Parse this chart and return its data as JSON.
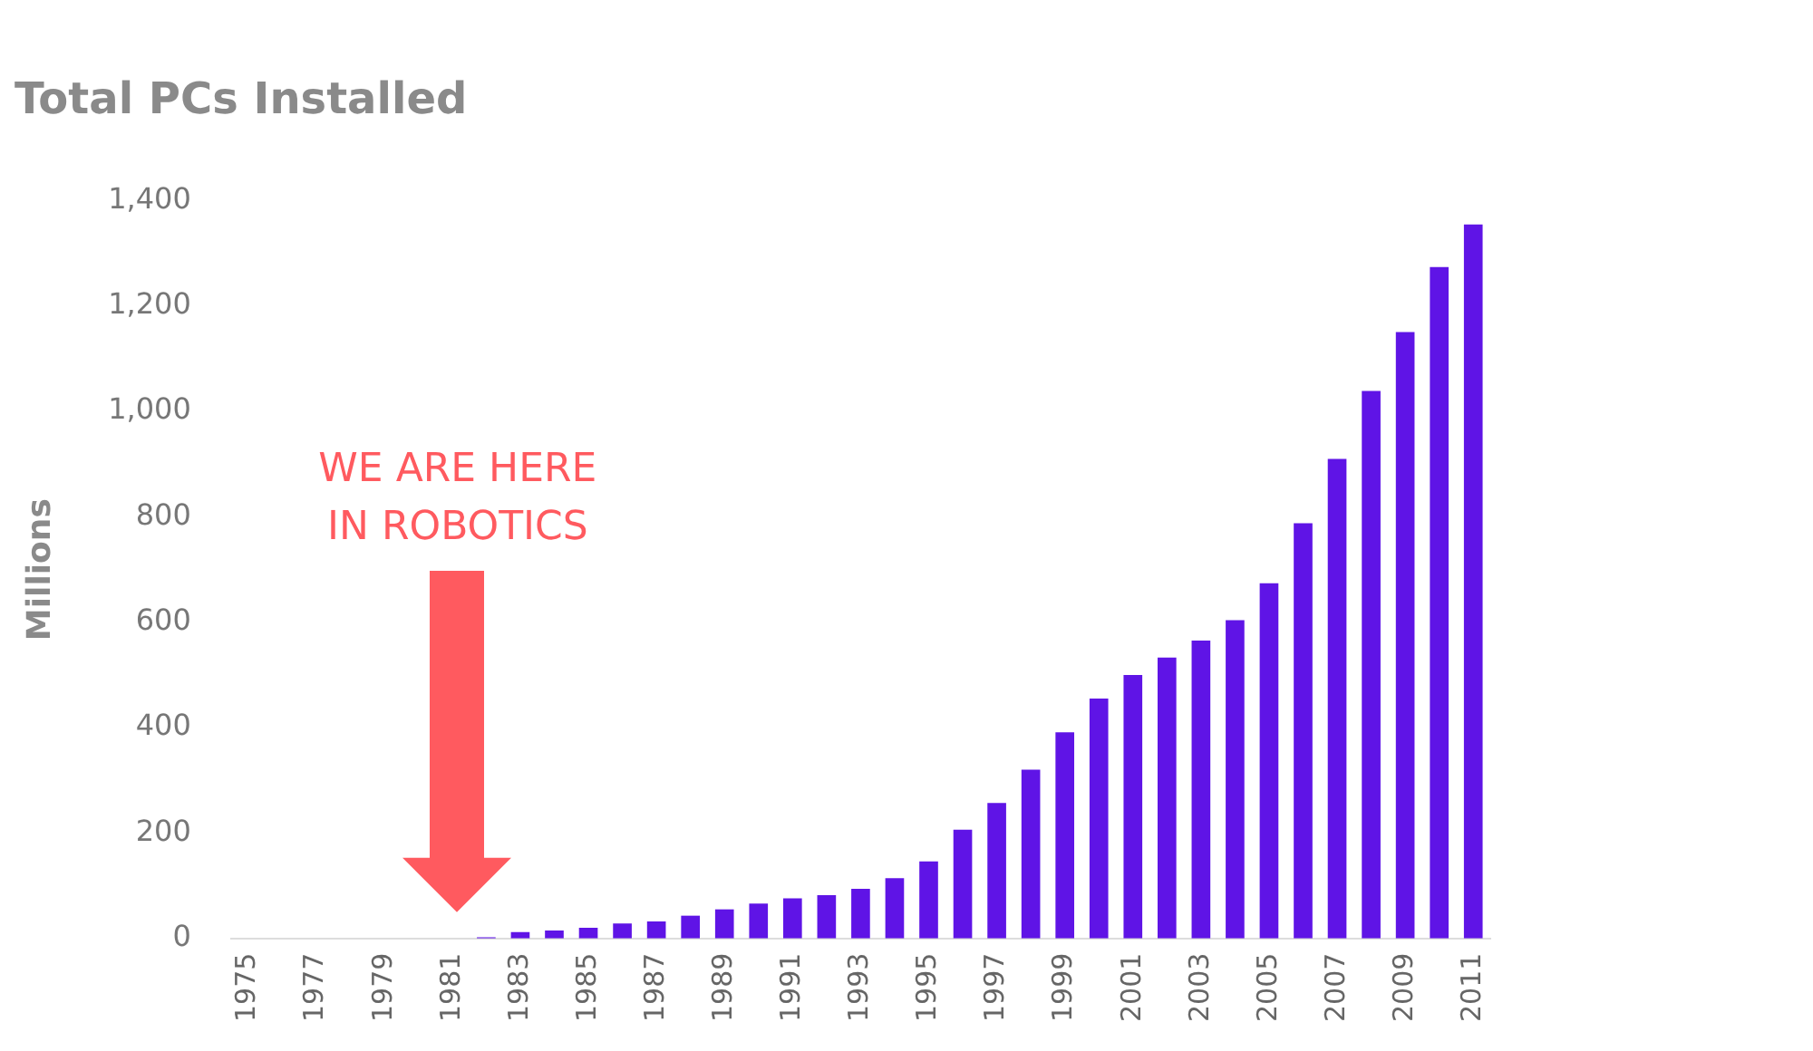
{
  "chart_data": {
    "type": "bar",
    "title": "Total PCs Installed",
    "ylabel": "Millions",
    "categories": [
      "1975",
      null,
      "1977",
      null,
      "1979",
      null,
      "1981",
      null,
      "1983",
      null,
      "1985",
      null,
      "1987",
      null,
      "1989",
      null,
      "1991",
      null,
      "1993",
      null,
      "1995",
      null,
      "1997",
      null,
      "1999",
      null,
      "2001",
      null,
      "2003",
      null,
      "2005",
      null,
      "2007",
      null,
      "2009",
      null,
      "2011"
    ],
    "values": [
      null,
      null,
      null,
      null,
      null,
      null,
      null,
      2,
      12,
      15,
      20,
      28,
      32,
      43,
      55,
      66,
      76,
      82,
      94,
      114,
      146,
      206,
      257,
      320,
      391,
      455,
      500,
      533,
      565,
      604,
      674,
      788,
      910,
      1039,
      1151,
      1274,
      1355
    ],
    "color": "#5f14e6",
    "ylim": [
      0,
      1400
    ],
    "yticks": [
      0,
      200,
      400,
      600,
      800,
      {
        "value": 1000,
        "label": "1,000"
      },
      {
        "value": 1200,
        "label": "1,200"
      },
      {
        "value": 1400,
        "label": "1,400"
      }
    ],
    "grid": false,
    "legend": false,
    "annotations": [
      "WE ARE HERE\nIN ROBOTICS"
    ]
  }
}
